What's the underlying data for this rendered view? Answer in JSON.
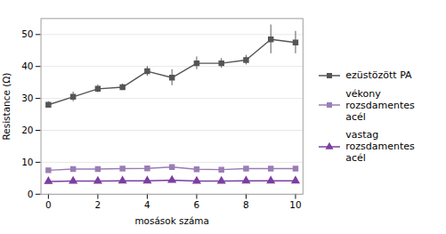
{
  "chart_data": {
    "type": "line",
    "x": [
      0,
      1,
      2,
      3,
      4,
      5,
      6,
      7,
      8,
      9,
      10
    ],
    "xlabel": "mosások száma",
    "ylabel": "Resistance (Ω)",
    "xlim": [
      -0.3,
      10.3
    ],
    "ylim": [
      0,
      55
    ],
    "xticks": [
      0,
      2,
      4,
      6,
      8,
      10
    ],
    "yticks": [
      0,
      10,
      20,
      30,
      40,
      50
    ],
    "grid": "y",
    "legend": "right",
    "series": [
      {
        "name": "ezüstözött PA",
        "color": "#555555",
        "marker": "square",
        "values": [
          28.0,
          30.5,
          33.0,
          33.5,
          38.5,
          36.5,
          41.0,
          41.0,
          42.0,
          48.5,
          47.5
        ],
        "errors": [
          1.0,
          1.5,
          1.2,
          1.0,
          1.5,
          2.5,
          2.0,
          1.5,
          1.5,
          4.5,
          3.5
        ]
      },
      {
        "name": "vékony rozsdamentes\nacél",
        "color": "#9b7db5",
        "marker": "square",
        "values": [
          7.5,
          7.9,
          7.9,
          8.0,
          8.1,
          8.5,
          7.8,
          7.7,
          8.0,
          8.0,
          8.0
        ],
        "errors": [
          0.3,
          0.3,
          0.3,
          0.3,
          0.3,
          0.3,
          0.3,
          0.3,
          0.3,
          0.3,
          0.3
        ]
      },
      {
        "name": "vastag rozsdamentes\nacél",
        "color": "#7b3fa0",
        "marker": "triangle",
        "values": [
          4.0,
          4.1,
          4.1,
          4.2,
          4.2,
          4.4,
          4.1,
          4.1,
          4.2,
          4.2,
          4.2
        ],
        "errors": [
          0.15,
          0.15,
          0.15,
          0.15,
          0.15,
          0.15,
          0.15,
          0.15,
          0.15,
          0.15,
          0.15
        ]
      }
    ]
  }
}
